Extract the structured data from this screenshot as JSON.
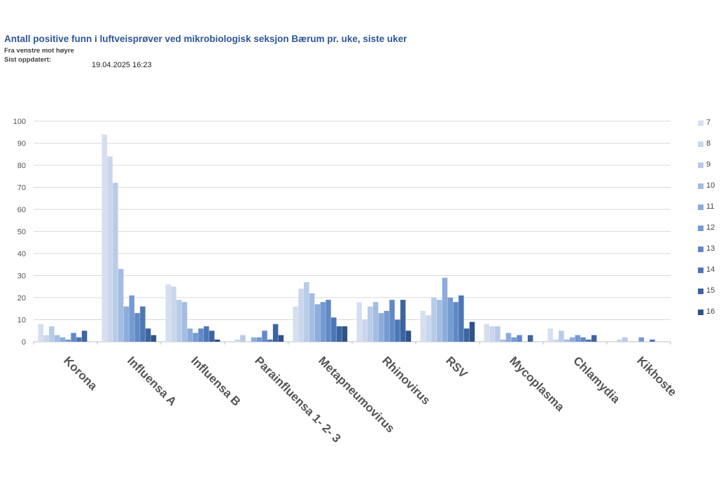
{
  "header": {
    "title": "Antall positive funn i luftveisprøver ved mikrobiologisk seksjon Bærum pr. uke, siste uker",
    "subtitle1": "Fra venstre mot høyre",
    "subtitle2": "Sist oppdatert:",
    "updated": "19.04.2025 16:23"
  },
  "chart_data": {
    "type": "bar",
    "title": "",
    "xlabel": "",
    "ylabel": "",
    "ylim": [
      0,
      100
    ],
    "yticks": [
      0,
      10,
      20,
      30,
      40,
      50,
      60,
      70,
      80,
      90,
      100
    ],
    "grid": true,
    "legend_placement": "right",
    "categories": [
      "Korona",
      "Influensa A",
      "Influensa B",
      "Parainfluensa 1- 2- 3",
      "Metapneumovirus",
      "Rhinovirus",
      "RSV",
      "Mycoplasma",
      "Chlamydia",
      "Kikhoste"
    ],
    "series": [
      {
        "name": "7",
        "color": "#d6dff0",
        "values": [
          8,
          94,
          26,
          0,
          16,
          18,
          14,
          8,
          6,
          0
        ]
      },
      {
        "name": "8",
        "color": "#c9d6ec",
        "values": [
          3,
          84,
          25,
          1,
          24,
          10,
          12,
          7,
          1,
          1
        ]
      },
      {
        "name": "9",
        "color": "#b8cbe7",
        "values": [
          7,
          72,
          19,
          3,
          27,
          16,
          20,
          7,
          5,
          2
        ]
      },
      {
        "name": "10",
        "color": "#a3bde2",
        "values": [
          3,
          33,
          18,
          0,
          22,
          18,
          19,
          1,
          1,
          0
        ]
      },
      {
        "name": "11",
        "color": "#8cacdb",
        "values": [
          2,
          16,
          6,
          2,
          17,
          13,
          29,
          4,
          2,
          0
        ]
      },
      {
        "name": "12",
        "color": "#769ad2",
        "values": [
          1,
          21,
          4,
          2,
          18,
          14,
          20,
          2,
          3,
          2
        ]
      },
      {
        "name": "13",
        "color": "#6189c5",
        "values": [
          4,
          13,
          6,
          5,
          19,
          19,
          18,
          3,
          2,
          0
        ]
      },
      {
        "name": "14",
        "color": "#4d76b4",
        "values": [
          2,
          16,
          7,
          1,
          11,
          10,
          21,
          0,
          1,
          1
        ]
      },
      {
        "name": "15",
        "color": "#3c64a0",
        "values": [
          5,
          6,
          5,
          8,
          7,
          19,
          6,
          3,
          3,
          0
        ]
      },
      {
        "name": "16",
        "color": "#2e528a",
        "values": [
          0,
          3,
          1,
          3,
          7,
          5,
          9,
          0,
          0,
          0
        ]
      }
    ]
  }
}
